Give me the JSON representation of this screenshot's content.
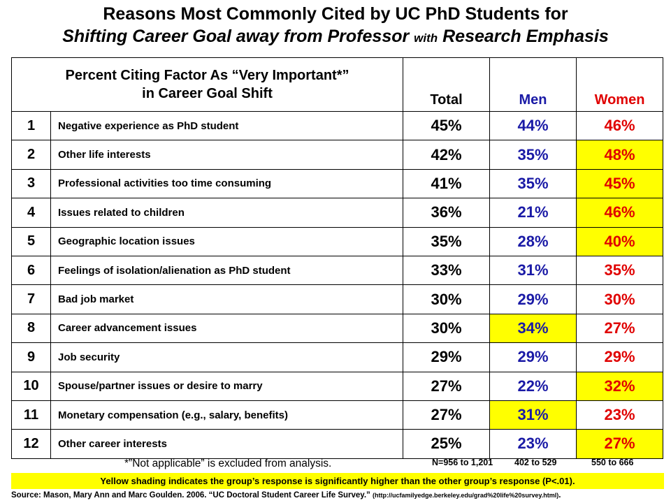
{
  "title_line1": "Reasons Most Commonly Cited by UC PhD Students for",
  "title_line2_a": "Shifting Career Goal away from Professor ",
  "title_line2_b": "with",
  "title_line2_c": " Research Emphasis",
  "header": {
    "desc_line1": "Percent Citing Factor As “Very Important*”",
    "desc_line2": "in Career Goal Shift",
    "total": "Total",
    "men": "Men",
    "women": "Women"
  },
  "chart_data": {
    "type": "table",
    "columns": [
      "Total",
      "Men",
      "Women"
    ],
    "rows": [
      {
        "rank": "1",
        "factor": "Negative experience as PhD student",
        "total": "45%",
        "men": "44%",
        "women": "46%",
        "highlight": ""
      },
      {
        "rank": "2",
        "factor": "Other life interests",
        "total": "42%",
        "men": "35%",
        "women": "48%",
        "highlight": "women"
      },
      {
        "rank": "3",
        "factor": "Professional activities too time consuming",
        "total": "41%",
        "men": "35%",
        "women": "45%",
        "highlight": "women"
      },
      {
        "rank": "4",
        "factor": "Issues related to children",
        "total": "36%",
        "men": "21%",
        "women": "46%",
        "highlight": "women"
      },
      {
        "rank": "5",
        "factor": "Geographic location issues",
        "total": "35%",
        "men": "28%",
        "women": "40%",
        "highlight": "women"
      },
      {
        "rank": "6",
        "factor": "Feelings of isolation/alienation as PhD student",
        "total": "33%",
        "men": "31%",
        "women": "35%",
        "highlight": ""
      },
      {
        "rank": "7",
        "factor": "Bad job market",
        "total": "30%",
        "men": "29%",
        "women": "30%",
        "highlight": ""
      },
      {
        "rank": "8",
        "factor": "Career advancement issues",
        "total": "30%",
        "men": "34%",
        "women": "27%",
        "highlight": "men"
      },
      {
        "rank": "9",
        "factor": "Job security",
        "total": "29%",
        "men": "29%",
        "women": "29%",
        "highlight": ""
      },
      {
        "rank": "10",
        "factor": "Spouse/partner issues or desire to marry",
        "total": "27%",
        "men": "22%",
        "women": "32%",
        "highlight": "women"
      },
      {
        "rank": "11",
        "factor": "Monetary compensation (e.g., salary, benefits)",
        "total": "27%",
        "men": "31%",
        "women": "23%",
        "highlight": "men"
      },
      {
        "rank": "12",
        "factor": "Other career interests",
        "total": "25%",
        "men": "23%",
        "women": "27%",
        "highlight": "women"
      }
    ]
  },
  "footnote": "*”Not applicable” is excluded from analysis.",
  "n_total": "N=956 to 1,201",
  "n_men": "402 to 529",
  "n_women": "550 to 666",
  "yellow_note": "Yellow shading indicates the group’s response is significantly higher than the other group’s response (P<.01).",
  "source_text": "Source: Mason, Mary Ann  and Marc Goulden.  2006.  “UC Doctoral  Student Career  Life Survey.” ",
  "source_url": "(http://ucfamilyedge.berkeley.edu/grad%20life%20survey.html)",
  "source_end": ".",
  "colors": {
    "highlight": "#ffff00",
    "men": "#1a1aa6",
    "women": "#e00000"
  }
}
